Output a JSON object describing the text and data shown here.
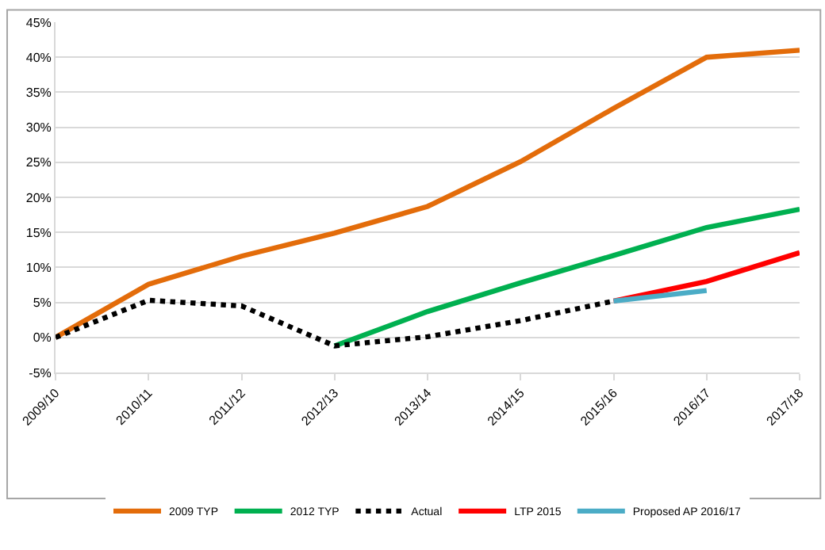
{
  "chart_data": {
    "type": "line",
    "categories": [
      "2009/10",
      "2010/11",
      "2011/12",
      "2012/13",
      "2013/14",
      "2014/15",
      "2015/16",
      "2016/17",
      "2017/18"
    ],
    "series": [
      {
        "name": "2009 TYP",
        "color": "#e36c0a",
        "line_style": "solid",
        "values": [
          0,
          7.6,
          11.6,
          14.9,
          18.7,
          25.1,
          32.7,
          40,
          41
        ]
      },
      {
        "name": "2012 TYP",
        "color": "#00b050",
        "line_style": "solid",
        "values": [
          null,
          null,
          null,
          -1.2,
          3.7,
          7.8,
          11.7,
          15.7,
          18.3
        ]
      },
      {
        "name": "Actual",
        "color": "#000000",
        "line_style": "dotted",
        "values": [
          0,
          5.3,
          4.5,
          -1.2,
          0.1,
          2.4,
          5.2,
          null,
          null
        ]
      },
      {
        "name": "LTP 2015",
        "color": "#ff0000",
        "line_style": "solid",
        "values": [
          null,
          null,
          null,
          null,
          null,
          null,
          5.2,
          8.0,
          12.1
        ]
      },
      {
        "name": "Proposed AP 2016/17",
        "color": "#4bacc6",
        "line_style": "solid",
        "values": [
          null,
          null,
          null,
          null,
          null,
          null,
          5.2,
          6.7,
          null
        ]
      }
    ],
    "ylim": [
      -5,
      45
    ],
    "yticks": [
      {
        "value": -5,
        "label": "-5%"
      },
      {
        "value": 0,
        "label": "0%"
      },
      {
        "value": 5,
        "label": "5%"
      },
      {
        "value": 10,
        "label": "10%"
      },
      {
        "value": 15,
        "label": "15%"
      },
      {
        "value": 20,
        "label": "20%"
      },
      {
        "value": 25,
        "label": "25%"
      },
      {
        "value": 30,
        "label": "30%"
      },
      {
        "value": 35,
        "label": "35%"
      },
      {
        "value": 40,
        "label": "40%"
      },
      {
        "value": 45,
        "label": "45%"
      }
    ],
    "grid": "y",
    "legend": "bottom",
    "marker": "none"
  }
}
